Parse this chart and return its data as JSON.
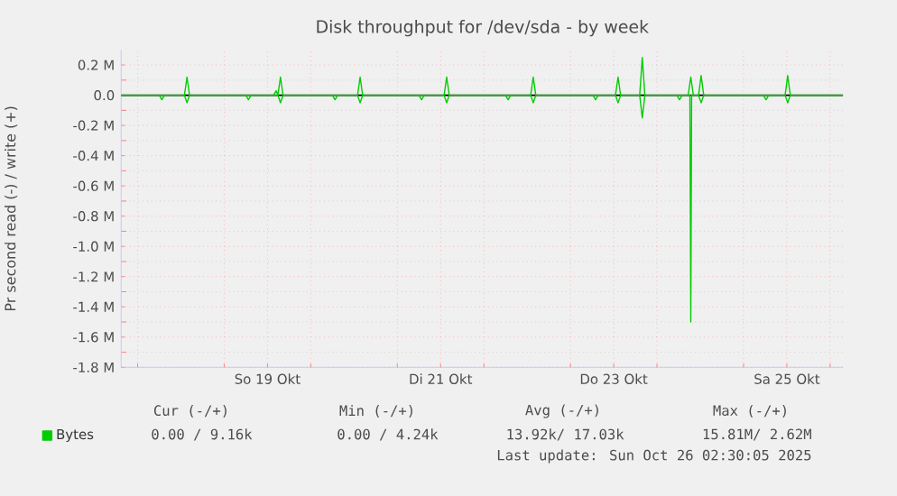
{
  "chart_data": {
    "type": "line",
    "title": "Disk throughput for /dev/sda - by week",
    "ylabel": "Pr second read (-) / write (+)",
    "xlim": [
      "2025-10-17T19:26",
      "2025-10-26T03:36"
    ],
    "ylim": [
      -1.8,
      0.3
    ],
    "xticks": [
      {
        "value": "2025-10-18",
        "label": null
      },
      {
        "value": "2025-10-19",
        "label": null
      },
      {
        "value": "2025-10-19T12:00",
        "label": "So 19 Okt"
      },
      {
        "value": "2025-10-20",
        "label": null
      },
      {
        "value": "2025-10-21",
        "label": null
      },
      {
        "value": "2025-10-21T12:00",
        "label": "Di 21 Okt"
      },
      {
        "value": "2025-10-22",
        "label": null
      },
      {
        "value": "2025-10-23",
        "label": null
      },
      {
        "value": "2025-10-23T12:00",
        "label": "Do 23 Okt"
      },
      {
        "value": "2025-10-24",
        "label": null
      },
      {
        "value": "2025-10-25",
        "label": null
      },
      {
        "value": "2025-10-25T12:00",
        "label": "Sa 25 Okt"
      },
      {
        "value": "2025-10-26",
        "label": null
      }
    ],
    "yticks": [
      {
        "value": -1.8,
        "label": "-1.8 M"
      },
      {
        "value": -1.6,
        "label": "-1.6 M"
      },
      {
        "value": -1.4,
        "label": "-1.4 M"
      },
      {
        "value": -1.2,
        "label": "-1.2 M"
      },
      {
        "value": -1.0,
        "label": "-1.0 M"
      },
      {
        "value": -0.8,
        "label": "-0.8 M"
      },
      {
        "value": -0.6,
        "label": "-0.6 M"
      },
      {
        "value": -0.4,
        "label": "-0.4 M"
      },
      {
        "value": -0.2,
        "label": "-0.2 M"
      },
      {
        "value": 0,
        "label": "0.0"
      },
      {
        "value": 0.2,
        "label": "0.2 M"
      }
    ],
    "grid": true,
    "legend": "bottom left",
    "marker": "none",
    "line_style": "solid",
    "ref_lines": [
      {
        "axis": "y",
        "value": 0,
        "color": "#000000"
      }
    ],
    "series": [
      {
        "name": "Bytes",
        "color": "#00cc00",
        "x": [
          "2025-10-17T19:26",
          "2025-10-18T12:58",
          "2025-10-18T13:41",
          "2025-10-18T14:24",
          "2025-10-19T13:41",
          "2025-10-19T14:24",
          "2025-10-19T14:53",
          "2025-10-19T15:36",
          "2025-10-19T16:19",
          "2025-10-20T12:58",
          "2025-10-20T13:41",
          "2025-10-20T14:24",
          "2025-10-21T12:58",
          "2025-10-21T13:41",
          "2025-10-21T14:24",
          "2025-10-22T12:58",
          "2025-10-22T13:41",
          "2025-10-22T14:24",
          "2025-10-23T12:29",
          "2025-10-23T13:12",
          "2025-10-23T13:55",
          "2025-10-23T19:12",
          "2025-10-23T19:55",
          "2025-10-23T20:38",
          "2025-10-24T08:38",
          "2025-10-24T09:22",
          "2025-10-24T10:05",
          "2025-10-24T11:31",
          "2025-10-24T12:14",
          "2025-10-24T12:58",
          "2025-10-25T11:31",
          "2025-10-25T12:14",
          "2025-10-25T12:58",
          "2025-10-26T03:36"
        ],
        "values": [
          0,
          0,
          0.12,
          0,
          0,
          0.03,
          0,
          0.12,
          0,
          0,
          0.12,
          0,
          0,
          0.12,
          0,
          0,
          0.12,
          0,
          0,
          0.12,
          0,
          0,
          0.25,
          0,
          0,
          0.12,
          0,
          0,
          0.13,
          0,
          0,
          0.13,
          0,
          0
        ]
      },
      {
        "color": "#00cc00",
        "x": [
          "2025-10-17T19:26",
          "2025-10-18T06:00",
          "2025-10-18T06:43",
          "2025-10-18T07:26",
          "2025-10-18T12:58",
          "2025-10-18T13:41",
          "2025-10-18T14:24",
          "2025-10-19T06:00",
          "2025-10-19T06:43",
          "2025-10-19T07:26",
          "2025-10-19T14:53",
          "2025-10-19T15:36",
          "2025-10-19T16:19",
          "2025-10-20T06:00",
          "2025-10-20T06:43",
          "2025-10-20T07:26",
          "2025-10-20T12:58",
          "2025-10-20T13:41",
          "2025-10-20T14:24",
          "2025-10-21T06:00",
          "2025-10-21T06:43",
          "2025-10-21T07:26",
          "2025-10-21T12:58",
          "2025-10-21T13:41",
          "2025-10-21T14:24",
          "2025-10-22T06:00",
          "2025-10-22T06:43",
          "2025-10-22T07:26",
          "2025-10-22T12:58",
          "2025-10-22T13:41",
          "2025-10-22T14:24",
          "2025-10-23T06:14",
          "2025-10-23T06:58",
          "2025-10-23T07:41",
          "2025-10-23T12:29",
          "2025-10-23T13:12",
          "2025-10-23T13:55",
          "2025-10-23T19:12",
          "2025-10-23T19:55",
          "2025-10-23T20:38",
          "2025-10-24T05:31",
          "2025-10-24T06:14",
          "2025-10-24T06:58",
          "2025-10-24T09:07",
          "2025-10-24T09:22",
          "2025-10-24T09:36",
          "2025-10-24T11:31",
          "2025-10-24T12:14",
          "2025-10-24T12:58",
          "2025-10-25T05:31",
          "2025-10-25T06:14",
          "2025-10-25T06:58",
          "2025-10-25T11:31",
          "2025-10-25T12:14",
          "2025-10-25T12:58",
          "2025-10-26T03:36"
        ],
        "values": [
          0,
          0,
          -0.03,
          0,
          0,
          -0.05,
          0,
          0,
          -0.03,
          0,
          0,
          -0.05,
          0,
          0,
          -0.03,
          0,
          0,
          -0.05,
          0,
          0,
          -0.03,
          0,
          0,
          -0.05,
          0,
          0,
          -0.03,
          0,
          0,
          -0.05,
          0,
          0,
          -0.03,
          0,
          0,
          -0.05,
          0,
          0,
          -0.15,
          0,
          0,
          -0.03,
          0,
          0,
          -1.5,
          0,
          0,
          -0.05,
          0,
          0,
          -0.03,
          0,
          0,
          -0.05,
          0,
          0
        ]
      }
    ],
    "annotations": [
      "Cur (-/+)",
      "Min (-/+)",
      "Avg (-/+)",
      "Max (-/+)",
      "0.00 /  9.16k",
      "0.00 /  4.24k",
      "13.92k/ 17.03k",
      "15.81M/  2.62M",
      "Last update: Sun Oct 26 02:30:05 2025"
    ]
  }
}
